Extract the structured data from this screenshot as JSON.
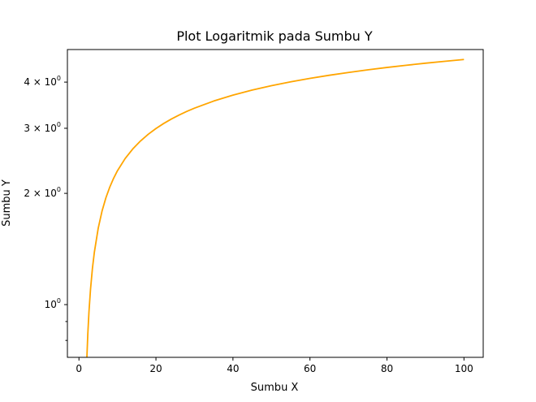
{
  "chart_data": {
    "type": "line",
    "title": "Plot Logaritmik pada Sumbu Y",
    "xlabel": "Sumbu X",
    "ylabel": "Sumbu Y",
    "yscale": "log",
    "xlim": [
      -3,
      105
    ],
    "ylim": [
      0.72,
      4.9
    ],
    "xticks": [
      0,
      20,
      40,
      60,
      80,
      100
    ],
    "yticks": [
      {
        "value": 1,
        "label": "10",
        "sup": "0"
      },
      {
        "value": 2,
        "label": "2 × 10",
        "sup": "0"
      },
      {
        "value": 3,
        "label": "3 × 10",
        "sup": "0"
      },
      {
        "value": 4,
        "label": "4 × 10",
        "sup": "0"
      }
    ],
    "minor_yticks": [
      0.8,
      0.9
    ],
    "grid": false,
    "series": [
      {
        "color": "#FFA500",
        "x": [
          2,
          2.3,
          2.6,
          3,
          3.5,
          4,
          5,
          6,
          7,
          8,
          9,
          10,
          12,
          14,
          16,
          18,
          20,
          22,
          24,
          26,
          28,
          30,
          35,
          40,
          45,
          50,
          55,
          60,
          65,
          70,
          75,
          80,
          85,
          90,
          95,
          100
        ],
        "y": [
          0.693,
          0.833,
          0.956,
          1.099,
          1.253,
          1.386,
          1.609,
          1.792,
          1.946,
          2.079,
          2.197,
          2.303,
          2.485,
          2.639,
          2.773,
          2.89,
          2.996,
          3.091,
          3.178,
          3.258,
          3.332,
          3.401,
          3.555,
          3.689,
          3.807,
          3.912,
          4.007,
          4.094,
          4.174,
          4.248,
          4.317,
          4.382,
          4.443,
          4.5,
          4.554,
          4.605
        ]
      }
    ]
  }
}
